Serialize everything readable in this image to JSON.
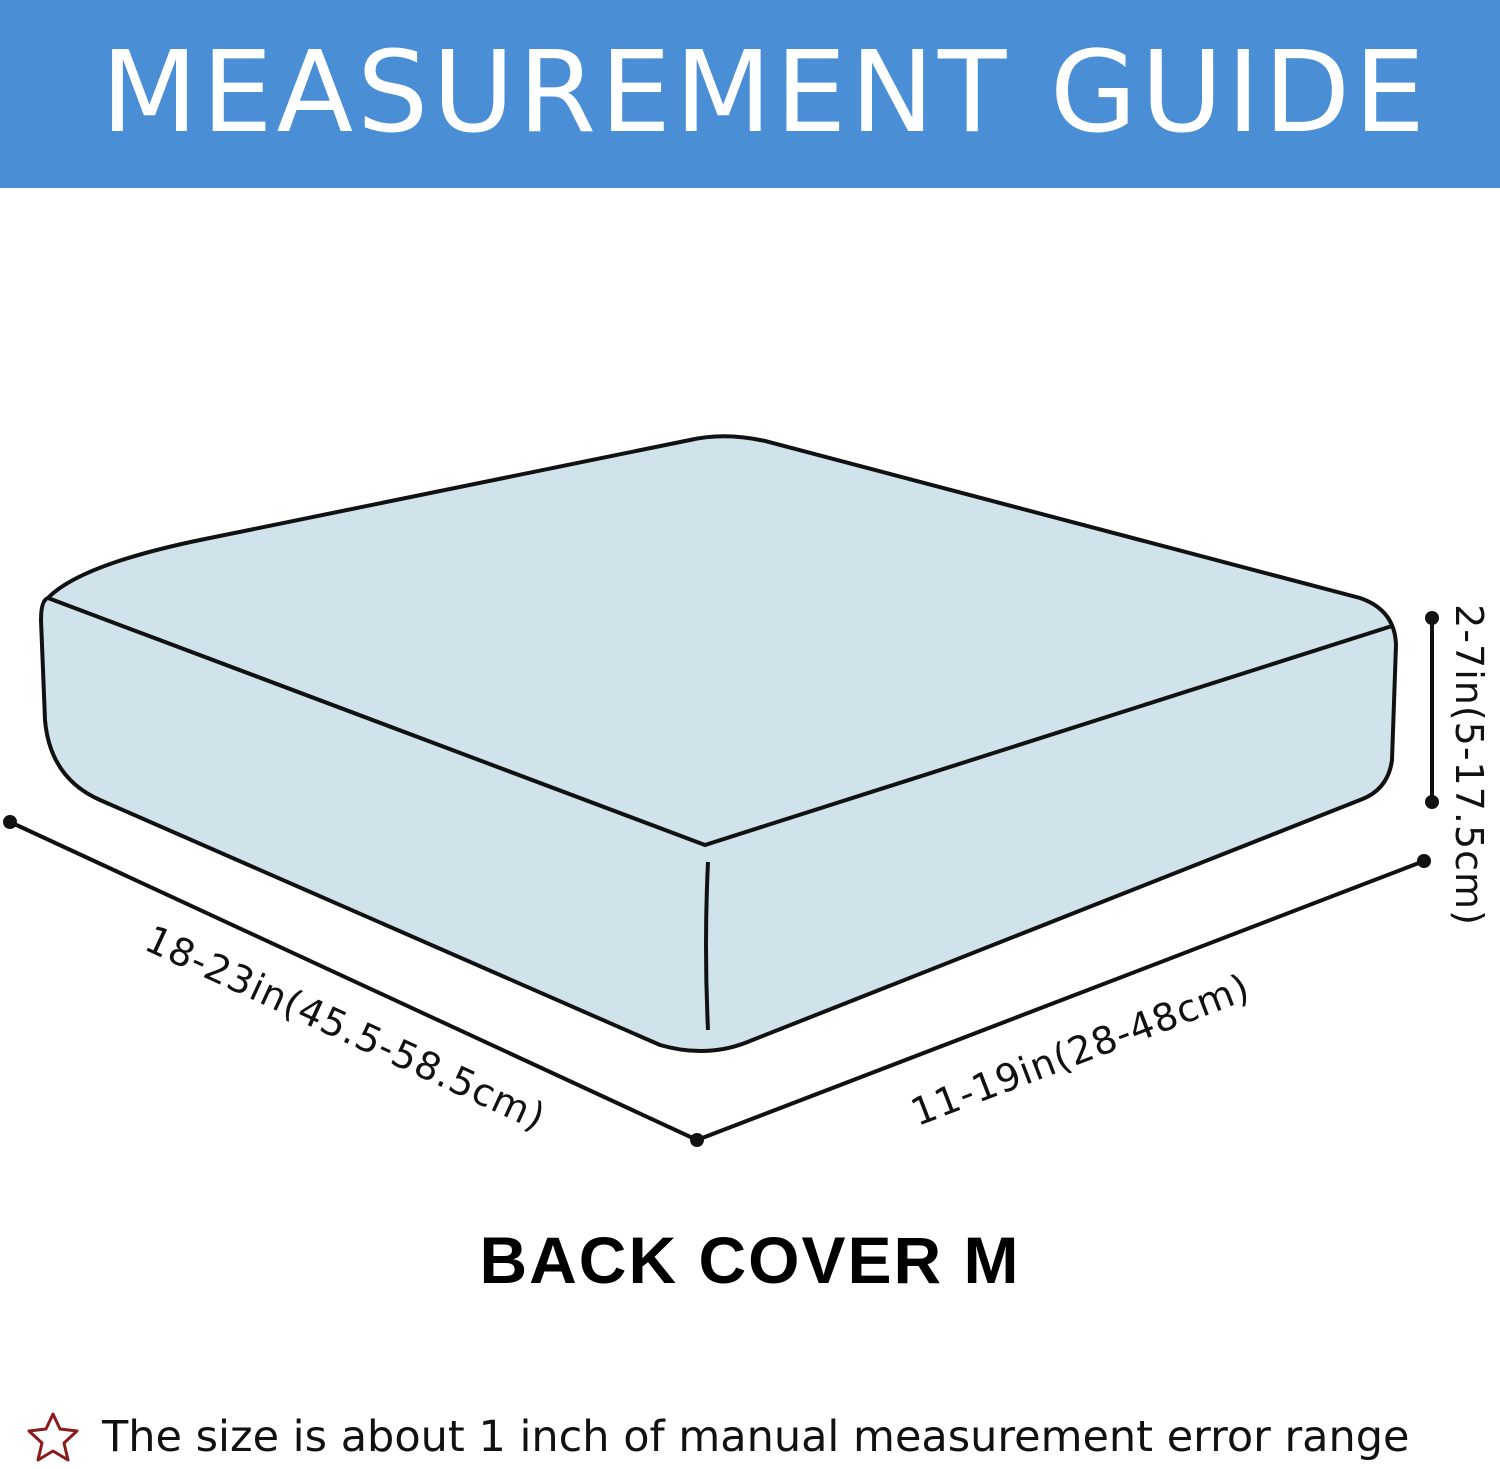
{
  "header": {
    "title": "MEASUREMENT GUIDE",
    "color": "#4a8fd6"
  },
  "diagram": {
    "cushion_color": "#d0e2ea",
    "dimensions": {
      "length": "18-23in(45.5-58.5cm)",
      "width": "11-19in(28-48cm)",
      "height": "2-7in(5-17.5cm)"
    }
  },
  "caption": "BACK COVER M",
  "note": {
    "icon": "star-outline-icon",
    "icon_color": "#8b1a1a",
    "text": "The size is about 1 inch of manual measurement error range"
  }
}
